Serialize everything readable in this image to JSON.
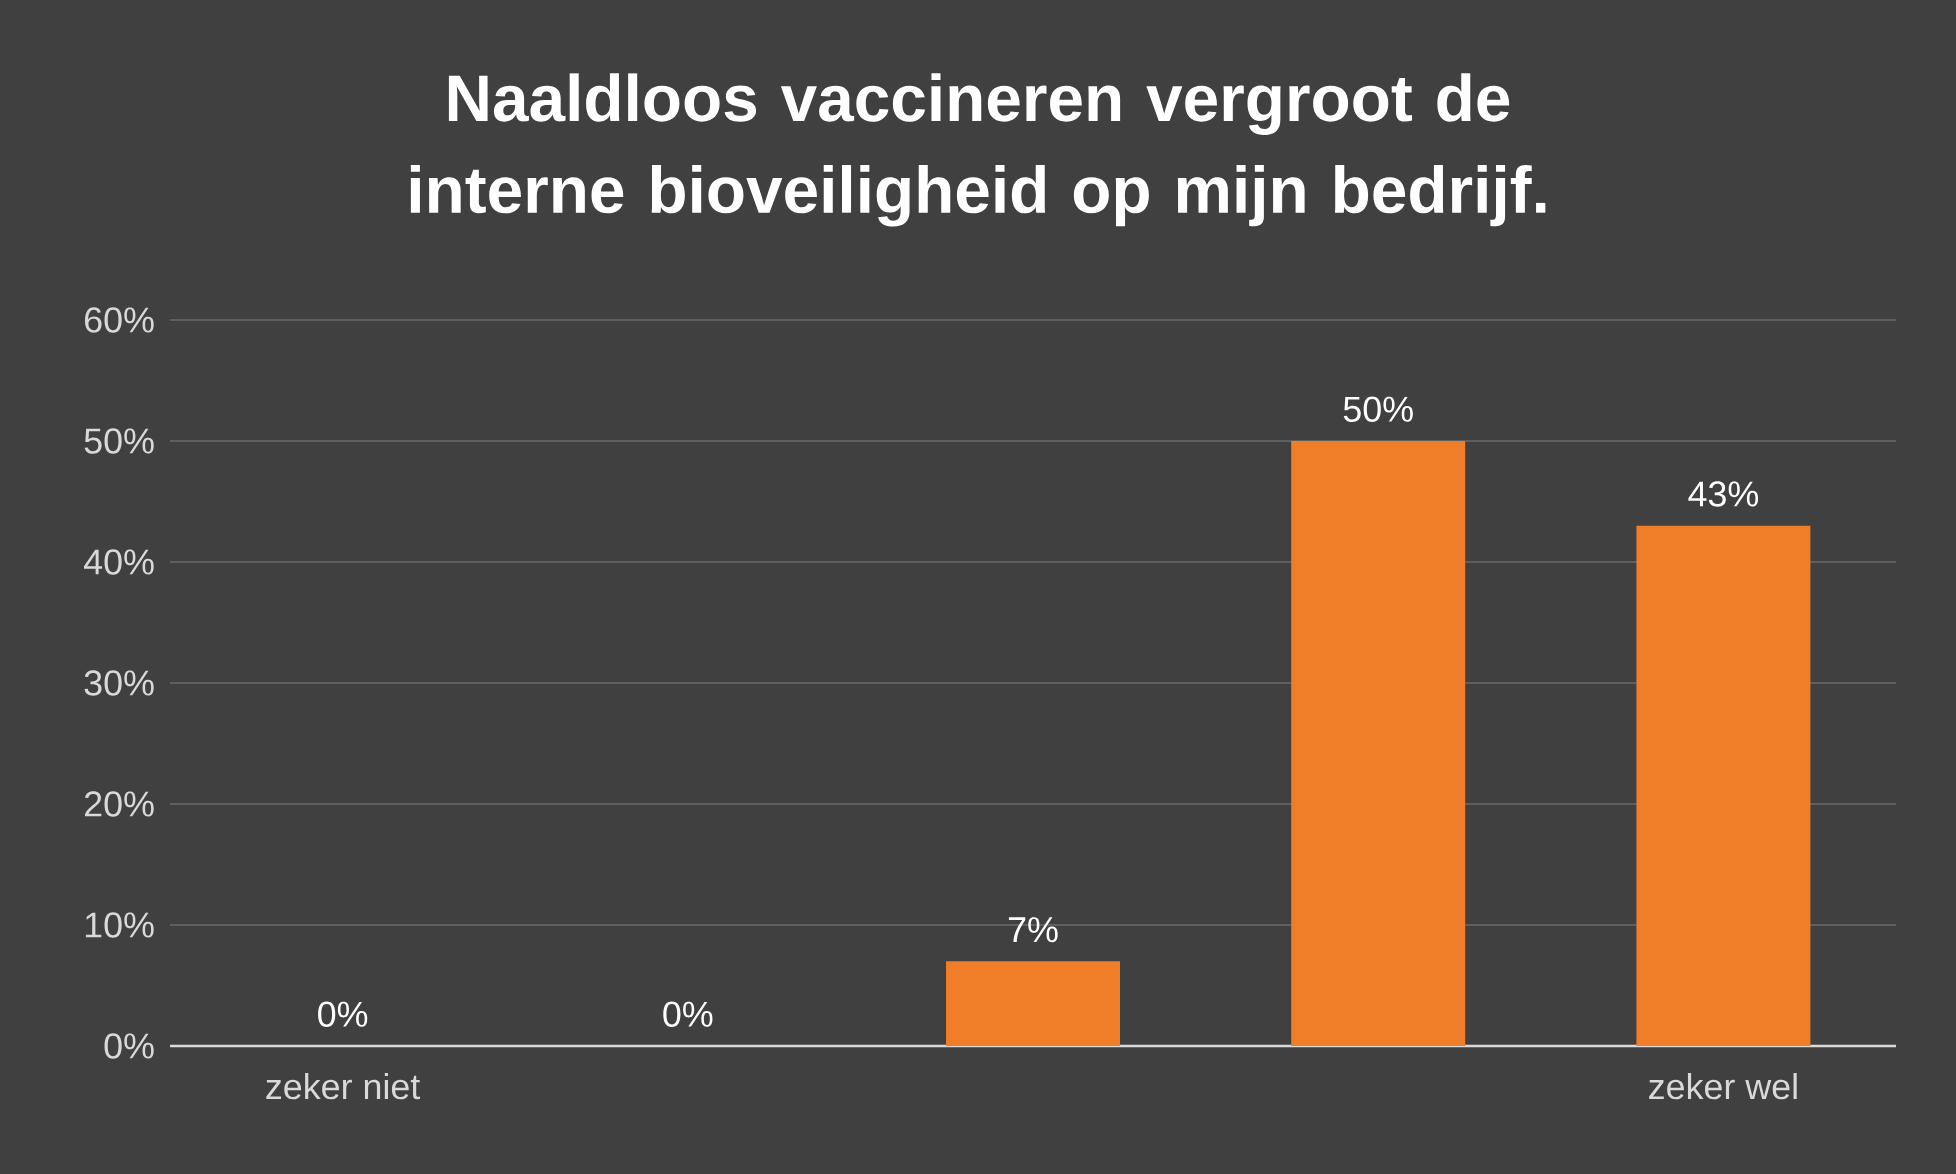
{
  "chart_data": {
    "type": "bar",
    "title": "Naaldloos vaccineren vergroot de interne bioveiligheid op mijn bedrijf.",
    "categories": [
      "zeker niet",
      null,
      null,
      null,
      "zeker wel"
    ],
    "values": [
      0,
      0,
      7,
      50,
      43
    ],
    "value_labels": [
      "0%",
      "0%",
      "7%",
      "50%",
      "43%"
    ],
    "color": "#f07d28",
    "ylim": [
      0,
      60
    ],
    "yticks": [
      {
        "value": 0,
        "label": "0%"
      },
      {
        "value": 10,
        "label": "10%"
      },
      {
        "value": 20,
        "label": "20%"
      },
      {
        "value": 30,
        "label": "30%"
      },
      {
        "value": 40,
        "label": "40%"
      },
      {
        "value": 50,
        "label": "50%"
      },
      {
        "value": 60,
        "label": "60%"
      }
    ],
    "grid": "y"
  }
}
